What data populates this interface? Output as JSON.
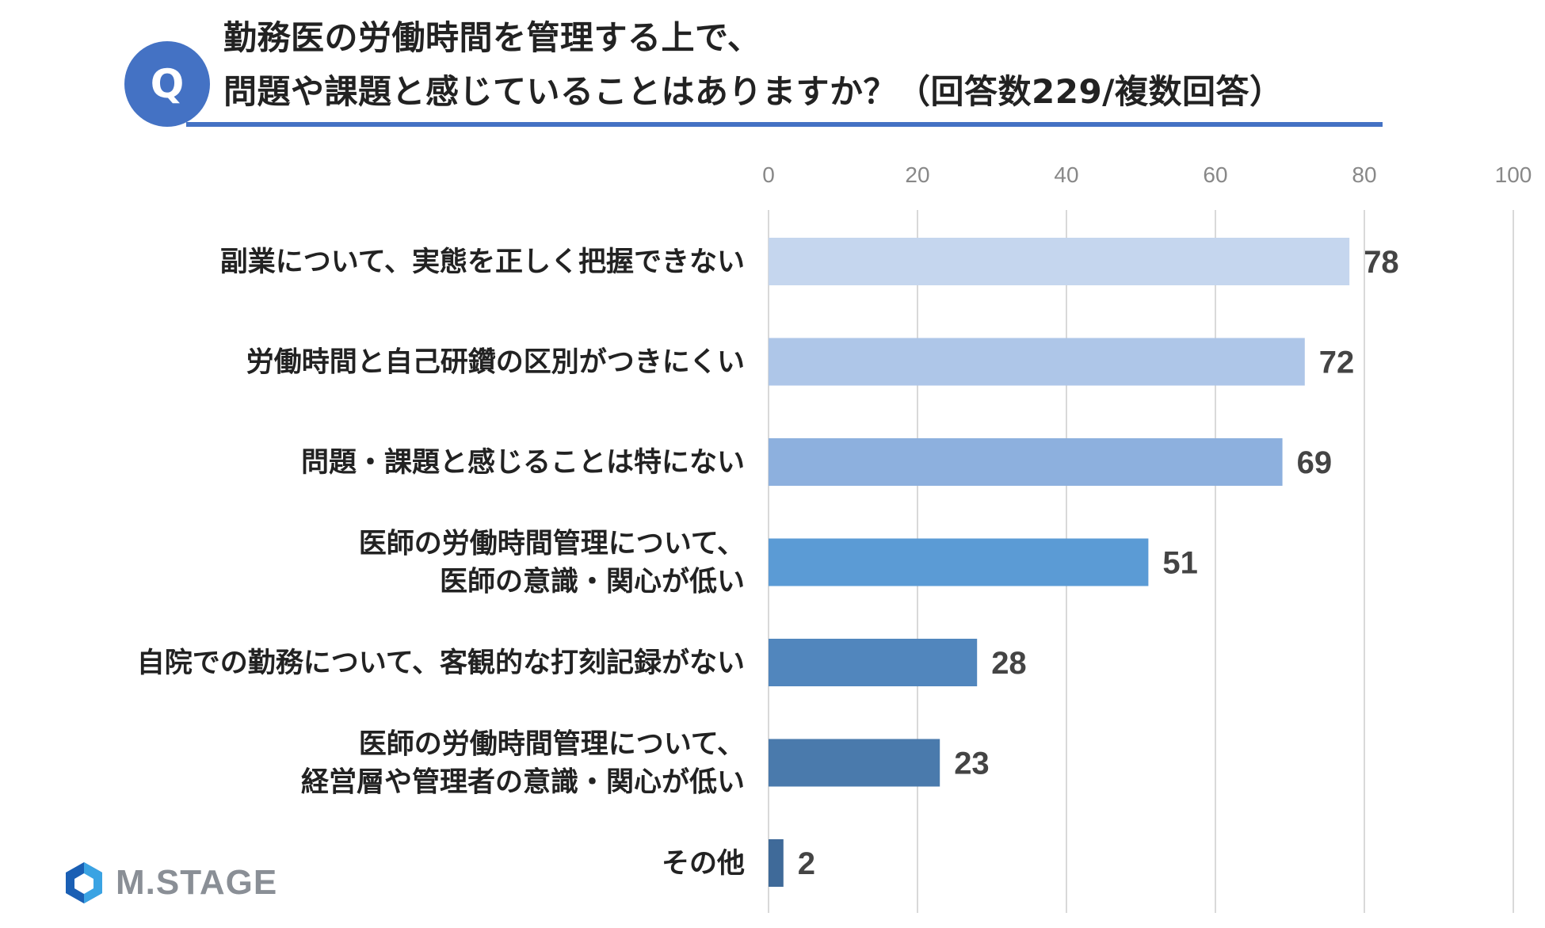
{
  "header": {
    "badge": "Q",
    "title_line_1": "勤務医の労働時間を管理する上で、",
    "title_line_2": "問題や課題と感じていることはありますか？（回答数229/複数回答）"
  },
  "logo": {
    "text": "M.STAGE",
    "icon": "hexagon-logo-icon",
    "colors": [
      "#1a5fb4",
      "#3aa3e3"
    ]
  },
  "chart_data": {
    "type": "bar",
    "orientation": "horizontal",
    "title": "",
    "xlabel": "",
    "ylabel": "",
    "xlim": [
      0,
      100
    ],
    "ticks": [
      "0",
      "20",
      "40",
      "60",
      "80",
      "100"
    ],
    "tick_values": [
      0,
      20,
      40,
      60,
      80,
      100
    ],
    "grid": true,
    "categories": [
      [
        "副業について、実態を正しく把握できない"
      ],
      [
        "労働時間と自己研鑽の区別がつきにくい"
      ],
      [
        "問題・課題と感じることは特にない"
      ],
      [
        "医師の労働時間管理について、",
        "医師の意識・関心が低い"
      ],
      [
        "自院での勤務について、客観的な打刻記録がない"
      ],
      [
        "医師の労働時間管理について、",
        "経営層や管理者の意識・関心が低い"
      ],
      [
        "その他"
      ]
    ],
    "values": [
      78,
      72,
      69,
      51,
      28,
      23,
      2
    ],
    "value_labels": [
      "78",
      "72",
      "69",
      "51",
      "28",
      "23",
      "2"
    ],
    "colors": [
      "#c5d6ee",
      "#aec6e8",
      "#8db0de",
      "#5b9bd5",
      "#5186bd",
      "#4a7aac",
      "#3f6a99"
    ]
  }
}
